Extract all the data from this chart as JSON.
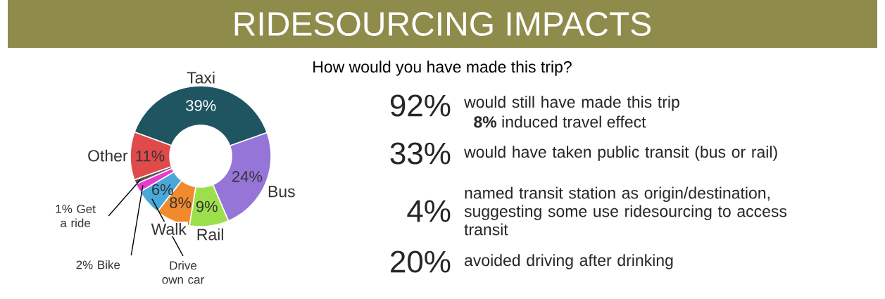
{
  "chart_data": [
    {
      "type": "donut",
      "title": "RIDESOURCING IMPACTS",
      "subtitle": "How would you have made this trip?",
      "categories": [
        "Taxi",
        "Bus",
        "Rail",
        "Walk",
        "Drive own car",
        "Bike",
        "Get a ride",
        "Other"
      ],
      "values": [
        39,
        24,
        9,
        8,
        6,
        2,
        1,
        11
      ],
      "colors": [
        "#1f5560",
        "#9575d8",
        "#9be04c",
        "#f08a2c",
        "#4aa8d8",
        "#e83ad0",
        "#555555",
        "#e04a4a"
      ],
      "value_labels": [
        "39%",
        "24%",
        "9%",
        "8%",
        "6%",
        "2%",
        "1%",
        "11%"
      ]
    },
    {
      "type": "other",
      "annotations": [
        "92%",
        "would still have made this trip",
        "**8%** induced travel effect",
        "33%",
        "would have taken public transit (bus or rail)",
        "4%",
        "named transit station as origin/destination, suggesting some use ridesourcing to access transit",
        "20%",
        "avoided driving after drinking"
      ]
    }
  ]
}
